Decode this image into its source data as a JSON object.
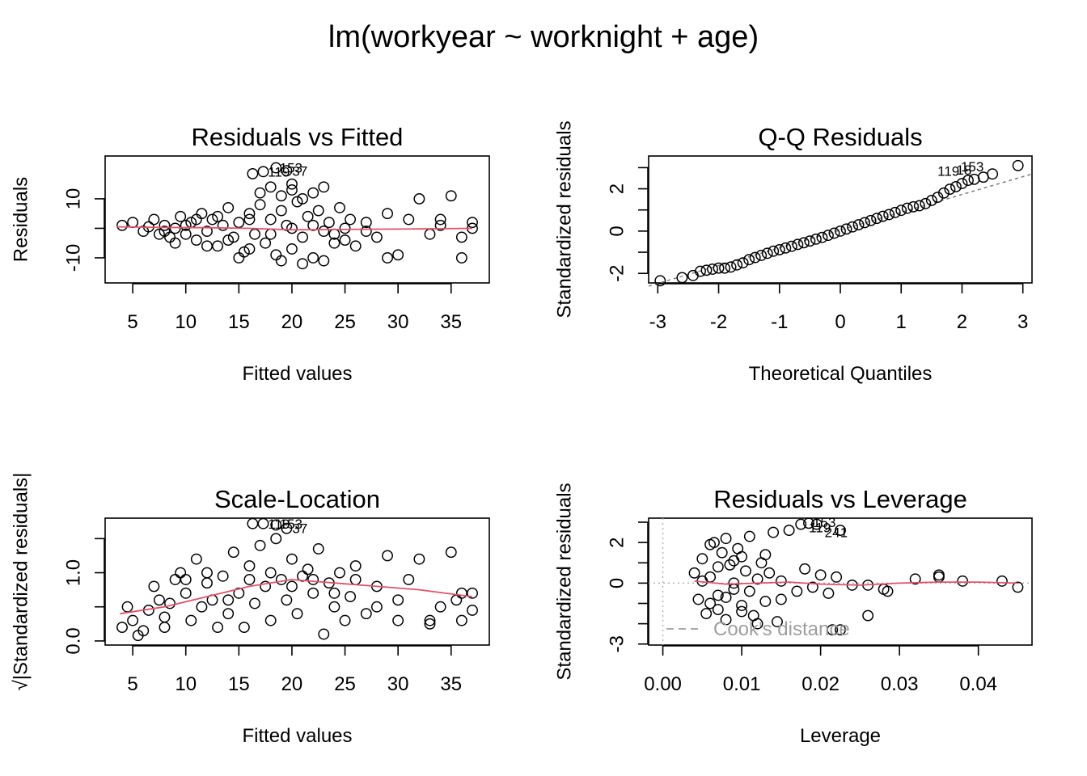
{
  "figure": {
    "title": "lm(workyear ~ worknight + age)"
  },
  "colors": {
    "points": "#000000",
    "smooth": "#DF536B",
    "reference": "#7f7f7f",
    "cooks": "#9e9e9e"
  },
  "chart_data": [
    {
      "type": "scatter",
      "title": "Residuals vs Fitted",
      "xlabel": "Fitted values",
      "ylabel": "Residuals",
      "xlim": [
        2.4,
        38.6
      ],
      "ylim": [
        -18.5,
        24.5
      ],
      "xticks": [
        5,
        10,
        15,
        20,
        25,
        30,
        35
      ],
      "yticks": [
        -10,
        0,
        10
      ],
      "yticklabels": [
        "-10",
        "",
        "10"
      ],
      "points": [
        [
          4,
          1
        ],
        [
          5,
          2
        ],
        [
          6,
          -1
        ],
        [
          6.5,
          0.5
        ],
        [
          7,
          3
        ],
        [
          7.5,
          -2
        ],
        [
          8,
          1
        ],
        [
          8.5,
          -3
        ],
        [
          9,
          0
        ],
        [
          9.5,
          4
        ],
        [
          10,
          -2
        ],
        [
          10.5,
          2
        ],
        [
          11,
          -4
        ],
        [
          11.5,
          5
        ],
        [
          12,
          -1
        ],
        [
          12.5,
          3
        ],
        [
          13,
          -6
        ],
        [
          13.5,
          1
        ],
        [
          14,
          7
        ],
        [
          14.5,
          -3
        ],
        [
          15,
          2
        ],
        [
          15.5,
          -8
        ],
        [
          16,
          5
        ],
        [
          16.5,
          -2
        ],
        [
          17,
          8
        ],
        [
          17.5,
          -5
        ],
        [
          18,
          3
        ],
        [
          18.5,
          -9
        ],
        [
          19,
          6
        ],
        [
          19.5,
          1
        ],
        [
          20,
          -7
        ],
        [
          20.5,
          9
        ],
        [
          21,
          -3
        ],
        [
          21.5,
          4
        ],
        [
          22,
          -10
        ],
        [
          22.5,
          6
        ],
        [
          23,
          -1
        ],
        [
          23.5,
          2
        ],
        [
          24,
          -5
        ],
        [
          24.5,
          7
        ],
        [
          25,
          -4
        ],
        [
          25.5,
          3
        ],
        [
          26,
          -6
        ],
        [
          27,
          2
        ],
        [
          28,
          -3
        ],
        [
          29,
          5
        ],
        [
          30,
          -9
        ],
        [
          31,
          3
        ],
        [
          32,
          10
        ],
        [
          33,
          -2
        ],
        [
          34,
          1
        ],
        [
          35,
          11
        ],
        [
          36,
          -3
        ],
        [
          37,
          0
        ],
        [
          9,
          -5
        ],
        [
          12,
          -6
        ],
        [
          15,
          -10
        ],
        [
          16,
          -7
        ],
        [
          19,
          -11
        ],
        [
          21,
          -12
        ],
        [
          23,
          -11
        ],
        [
          17,
          12
        ],
        [
          18,
          14
        ],
        [
          19,
          11
        ],
        [
          20,
          13
        ],
        [
          21,
          10
        ],
        [
          22,
          12
        ],
        [
          23,
          14
        ],
        [
          20,
          15
        ],
        [
          16.3,
          18.5
        ],
        [
          17.3,
          19.2
        ],
        [
          18.5,
          20.5
        ],
        [
          19.5,
          19.5
        ],
        [
          11,
          3
        ],
        [
          13,
          4
        ],
        [
          14,
          -4
        ],
        [
          16,
          3
        ],
        [
          18,
          -2
        ],
        [
          20,
          0
        ],
        [
          22,
          1
        ],
        [
          24,
          -2
        ],
        [
          25,
          0
        ],
        [
          10,
          1
        ],
        [
          8,
          -1
        ],
        [
          27,
          -1
        ],
        [
          29,
          -10
        ],
        [
          34,
          3
        ],
        [
          36,
          -10
        ],
        [
          37,
          2
        ]
      ],
      "smooth": [
        [
          3.5,
          0.5
        ],
        [
          8,
          0.3
        ],
        [
          12,
          0.2
        ],
        [
          16,
          0
        ],
        [
          20,
          -0.5
        ],
        [
          24,
          -0.4
        ],
        [
          28,
          -0.3
        ],
        [
          32,
          -0.2
        ],
        [
          37,
          0
        ]
      ],
      "labels": [
        {
          "text": "119",
          "x": 17.2,
          "y": 19.2,
          "pos": "right"
        },
        {
          "text": "153",
          "x": 18.3,
          "y": 20.5,
          "pos": "right"
        },
        {
          "text": "37",
          "x": 19.5,
          "y": 19.5,
          "pos": "right"
        }
      ]
    },
    {
      "type": "scatter",
      "title": "Q-Q Residuals",
      "xlabel": "Theoretical Quantiles",
      "ylabel": "Standardized residuals",
      "xlim": [
        -3.15,
        3.15
      ],
      "ylim": [
        -2.45,
        3.55
      ],
      "xticks": [
        -3,
        -2,
        -1,
        0,
        1,
        2,
        3
      ],
      "yticks": [
        -2,
        -1,
        0,
        1,
        2,
        3
      ],
      "yticklabels": [
        "-2",
        "",
        "0",
        "",
        "2",
        ""
      ],
      "points": [
        [
          -2.96,
          -2.35
        ],
        [
          -2.6,
          -2.2
        ],
        [
          -2.42,
          -2.1
        ],
        [
          -2.3,
          -1.9
        ],
        [
          -2.2,
          -1.85
        ],
        [
          -2.1,
          -1.8
        ],
        [
          -2.0,
          -1.75
        ],
        [
          -1.9,
          -1.75
        ],
        [
          -1.8,
          -1.7
        ],
        [
          -1.7,
          -1.6
        ],
        [
          -1.6,
          -1.5
        ],
        [
          -1.5,
          -1.35
        ],
        [
          -1.4,
          -1.25
        ],
        [
          -1.3,
          -1.15
        ],
        [
          -1.2,
          -1.05
        ],
        [
          -1.1,
          -0.95
        ],
        [
          -1.0,
          -0.88
        ],
        [
          -0.9,
          -0.8
        ],
        [
          -0.8,
          -0.72
        ],
        [
          -0.7,
          -0.63
        ],
        [
          -0.6,
          -0.55
        ],
        [
          -0.5,
          -0.47
        ],
        [
          -0.4,
          -0.38
        ],
        [
          -0.3,
          -0.3
        ],
        [
          -0.2,
          -0.2
        ],
        [
          -0.1,
          -0.1
        ],
        [
          0,
          0
        ],
        [
          0.1,
          0.1
        ],
        [
          0.2,
          0.2
        ],
        [
          0.3,
          0.3
        ],
        [
          0.4,
          0.4
        ],
        [
          0.5,
          0.5
        ],
        [
          0.6,
          0.6
        ],
        [
          0.7,
          0.7
        ],
        [
          0.8,
          0.78
        ],
        [
          0.9,
          0.88
        ],
        [
          1.0,
          0.98
        ],
        [
          1.1,
          1.08
        ],
        [
          1.2,
          1.15
        ],
        [
          1.3,
          1.2
        ],
        [
          1.4,
          1.3
        ],
        [
          1.5,
          1.45
        ],
        [
          1.6,
          1.6
        ],
        [
          1.7,
          1.8
        ],
        [
          1.8,
          1.98
        ],
        [
          1.9,
          2.1
        ],
        [
          2.0,
          2.25
        ],
        [
          2.1,
          2.4
        ],
        [
          2.2,
          2.45
        ],
        [
          2.35,
          2.55
        ],
        [
          2.5,
          2.7
        ],
        [
          2.92,
          3.1
        ]
      ],
      "reference_line": [
        [
          -3.15,
          -2.6
        ],
        [
          3.15,
          2.7
        ]
      ],
      "labels": [
        {
          "text": "119",
          "x": 2.05,
          "y": 2.85,
          "pos": "left"
        },
        {
          "text": "18",
          "x": 2.25,
          "y": 2.9,
          "pos": "left"
        },
        {
          "text": "153",
          "x": 2.45,
          "y": 3.05,
          "pos": "left"
        }
      ]
    },
    {
      "type": "scatter",
      "title": "Scale-Location",
      "xlabel": "Fitted values",
      "ylabel": "√|Standardized residuals|",
      "xlim": [
        2.4,
        38.6
      ],
      "ylim": [
        -0.06,
        1.8
      ],
      "xticks": [
        5,
        10,
        15,
        20,
        25,
        30,
        35
      ],
      "yticks": [
        0,
        0.5,
        1.0,
        1.5
      ],
      "yticklabels": [
        "0.0",
        "",
        "1.0",
        ""
      ],
      "points": [
        [
          4,
          0.2
        ],
        [
          4.5,
          0.5
        ],
        [
          5,
          0.3
        ],
        [
          5.5,
          0.08
        ],
        [
          6,
          0.15
        ],
        [
          6.5,
          0.45
        ],
        [
          7,
          0.8
        ],
        [
          7.5,
          0.6
        ],
        [
          8,
          0.35
        ],
        [
          8.5,
          0.55
        ],
        [
          9,
          0.9
        ],
        [
          9.5,
          1.0
        ],
        [
          10,
          0.7
        ],
        [
          10.5,
          0.3
        ],
        [
          11,
          1.2
        ],
        [
          11.5,
          0.5
        ],
        [
          12,
          0.85
        ],
        [
          12.5,
          0.6
        ],
        [
          13,
          0.2
        ],
        [
          13.5,
          0.95
        ],
        [
          14,
          0.4
        ],
        [
          14.5,
          1.3
        ],
        [
          15,
          0.7
        ],
        [
          15.5,
          0.2
        ],
        [
          16,
          1.1
        ],
        [
          16.5,
          0.55
        ],
        [
          17,
          1.4
        ],
        [
          17.5,
          0.8
        ],
        [
          18,
          0.3
        ],
        [
          18.5,
          1.5
        ],
        [
          19,
          0.9
        ],
        [
          19.5,
          0.6
        ],
        [
          20,
          1.2
        ],
        [
          20.5,
          0.4
        ],
        [
          21,
          0.95
        ],
        [
          21.5,
          1.05
        ],
        [
          22,
          0.7
        ],
        [
          22.5,
          1.35
        ],
        [
          23,
          0.1
        ],
        [
          23.5,
          0.85
        ],
        [
          24,
          0.5
        ],
        [
          24.5,
          1.0
        ],
        [
          25,
          0.3
        ],
        [
          25.5,
          0.65
        ],
        [
          26,
          0.9
        ],
        [
          27,
          0.4
        ],
        [
          28,
          0.8
        ],
        [
          29,
          1.25
        ],
        [
          30,
          0.6
        ],
        [
          31,
          0.9
        ],
        [
          32,
          1.2
        ],
        [
          33,
          0.3
        ],
        [
          34,
          0.5
        ],
        [
          35,
          1.3
        ],
        [
          35.5,
          0.6
        ],
        [
          36,
          0.7
        ],
        [
          37,
          0.45
        ],
        [
          16.3,
          1.72
        ],
        [
          17.3,
          1.72
        ],
        [
          18.5,
          1.7
        ],
        [
          19.5,
          1.65
        ],
        [
          12,
          1.0
        ],
        [
          14,
          0.6
        ],
        [
          16,
          0.9
        ],
        [
          18,
          1.0
        ],
        [
          20,
          0.8
        ],
        [
          22,
          0.9
        ],
        [
          24,
          0.7
        ],
        [
          26,
          1.1
        ],
        [
          28,
          0.5
        ],
        [
          10,
          0.9
        ],
        [
          8,
          0.2
        ],
        [
          30,
          0.3
        ],
        [
          33,
          0.25
        ],
        [
          36,
          0.3
        ],
        [
          37,
          0.7
        ]
      ],
      "smooth": [
        [
          3.8,
          0.4
        ],
        [
          8,
          0.5
        ],
        [
          12,
          0.65
        ],
        [
          16,
          0.8
        ],
        [
          20,
          0.9
        ],
        [
          24,
          0.85
        ],
        [
          28,
          0.8
        ],
        [
          32,
          0.75
        ],
        [
          37,
          0.65
        ]
      ],
      "labels": [
        {
          "text": "119",
          "x": 17.2,
          "y": 1.72,
          "pos": "right"
        },
        {
          "text": "153",
          "x": 18.3,
          "y": 1.72,
          "pos": "right"
        },
        {
          "text": "37",
          "x": 19.5,
          "y": 1.65,
          "pos": "right"
        }
      ]
    },
    {
      "type": "scatter",
      "title": "Residuals vs Leverage",
      "xlabel": "Leverage",
      "ylabel": "Standardized residuals",
      "xlim": [
        -0.0018,
        0.0468
      ],
      "ylim": [
        -3.05,
        3.2
      ],
      "xticks": [
        0.0,
        0.01,
        0.02,
        0.03,
        0.04
      ],
      "xticklabels": [
        "0.00",
        "0.01",
        "0.02",
        "0.03",
        "0.04"
      ],
      "yticks": [
        -3,
        -2,
        -1,
        0,
        1,
        2,
        3
      ],
      "yticklabels": [
        "-3",
        "",
        "",
        "0",
        "",
        "2",
        ""
      ],
      "points": [
        [
          0.004,
          0.5
        ],
        [
          0.0045,
          -0.8
        ],
        [
          0.005,
          1.2
        ],
        [
          0.0055,
          -1.5
        ],
        [
          0.006,
          0.3
        ],
        [
          0.0065,
          2.0
        ],
        [
          0.007,
          -0.6
        ],
        [
          0.0075,
          1.5
        ],
        [
          0.008,
          -1.8
        ],
        [
          0.0085,
          0.9
        ],
        [
          0.009,
          -0.3
        ],
        [
          0.0095,
          1.7
        ],
        [
          0.01,
          -1.1
        ],
        [
          0.0105,
          0.6
        ],
        [
          0.011,
          2.3
        ],
        [
          0.0115,
          -1.6
        ],
        [
          0.012,
          0.2
        ],
        [
          0.0125,
          1.0
        ],
        [
          0.013,
          -0.9
        ],
        [
          0.0135,
          0.5
        ],
        [
          0.014,
          2.5
        ],
        [
          0.0145,
          -1.9
        ],
        [
          0.015,
          0.1
        ],
        [
          0.016,
          2.6
        ],
        [
          0.017,
          -0.4
        ],
        [
          0.0175,
          2.9
        ],
        [
          0.018,
          0.7
        ],
        [
          0.019,
          -0.2
        ],
        [
          0.02,
          0.4
        ],
        [
          0.021,
          -0.5
        ],
        [
          0.0225,
          2.6
        ],
        [
          0.022,
          0.3
        ],
        [
          0.024,
          -0.1
        ],
        [
          0.026,
          -1.6
        ],
        [
          0.026,
          -0.1
        ],
        [
          0.028,
          -0.3
        ],
        [
          0.0285,
          -0.4
        ],
        [
          0.032,
          0.2
        ],
        [
          0.035,
          0.4
        ],
        [
          0.035,
          0.3
        ],
        [
          0.038,
          0.1
        ],
        [
          0.043,
          0.1
        ],
        [
          0.045,
          -0.2
        ],
        [
          0.005,
          0.1
        ],
        [
          0.006,
          -1.0
        ],
        [
          0.007,
          0.8
        ],
        [
          0.008,
          -0.7
        ],
        [
          0.009,
          0.0
        ],
        [
          0.01,
          1.3
        ],
        [
          0.011,
          -0.4
        ],
        [
          0.012,
          -2.0
        ],
        [
          0.013,
          1.4
        ],
        [
          0.015,
          -0.8
        ],
        [
          0.006,
          1.9
        ],
        [
          0.007,
          -1.3
        ],
        [
          0.008,
          2.2
        ],
        [
          0.009,
          1.1
        ],
        [
          0.01,
          -1.4
        ],
        [
          0.0185,
          2.95
        ],
        [
          0.0195,
          2.9
        ],
        [
          0.0215,
          -2.3
        ],
        [
          0.0225,
          -2.3
        ]
      ],
      "smooth": [
        [
          0.004,
          0.1
        ],
        [
          0.008,
          -0.05
        ],
        [
          0.012,
          0
        ],
        [
          0.016,
          0.05
        ],
        [
          0.02,
          -0.05
        ],
        [
          0.025,
          -0.1
        ],
        [
          0.03,
          0
        ],
        [
          0.035,
          0.05
        ],
        [
          0.04,
          0.05
        ],
        [
          0.045,
          0.0
        ]
      ],
      "reference_hline": 0,
      "reference_vline": 0,
      "labels": [
        {
          "text": "153",
          "x": 0.0183,
          "y": 3.0,
          "pos": "right"
        },
        {
          "text": "119",
          "x": 0.0178,
          "y": 2.75,
          "pos": "right"
        },
        {
          "text": "241",
          "x": 0.0198,
          "y": 2.5,
          "pos": "right"
        }
      ],
      "legend": {
        "text": "Cook's distance",
        "placement": "bottom-left"
      }
    }
  ]
}
